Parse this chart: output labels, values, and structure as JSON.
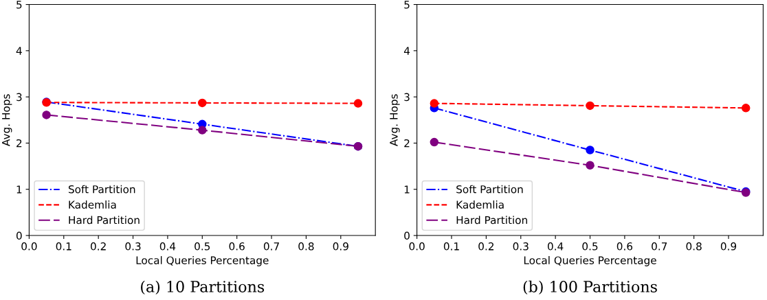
{
  "chart_data": [
    {
      "type": "line",
      "title": "(a) 10 Partitions",
      "xlabel": "Local Queries Percentage",
      "ylabel": "Avg. Hops",
      "x": [
        0.05,
        0.5,
        0.95
      ],
      "series": [
        {
          "name": "Soft Partition",
          "color": "#0000ff",
          "line_style": "dashdot",
          "values": [
            2.89,
            2.41,
            1.93
          ]
        },
        {
          "name": "Kademlia",
          "color": "#ff0000",
          "line_style": "dashed",
          "values": [
            2.88,
            2.87,
            2.86
          ]
        },
        {
          "name": "Hard Partition",
          "color": "#800080",
          "line_style": "longdash",
          "values": [
            2.61,
            2.28,
            1.93
          ]
        }
      ],
      "xlim": [
        0,
        1
      ],
      "xticks": [
        {
          "value": 0,
          "label": "0.0"
        },
        0.1,
        0.2,
        0.3,
        0.4,
        0.5,
        0.6,
        0.7,
        0.8,
        0.9
      ],
      "ylim": [
        0,
        5
      ],
      "yticks": [
        0,
        1,
        2,
        3,
        4,
        5
      ],
      "marker": "circle",
      "grid": false,
      "legend": "bottom left"
    },
    {
      "type": "line",
      "title": "(b) 100 Partitions",
      "xlabel": "Local Queries Percentage",
      "ylabel": "Avg. Hops",
      "x": [
        0.05,
        0.5,
        0.95
      ],
      "series": [
        {
          "name": "Soft Partition",
          "color": "#0000ff",
          "line_style": "dashdot",
          "values": [
            2.76,
            1.85,
            0.95
          ]
        },
        {
          "name": "Kademlia",
          "color": "#ff0000",
          "line_style": "dashed",
          "values": [
            2.86,
            2.81,
            2.76
          ]
        },
        {
          "name": "Hard Partition",
          "color": "#800080",
          "line_style": "longdash",
          "values": [
            2.02,
            1.52,
            0.93
          ]
        }
      ],
      "xlim": [
        0,
        1
      ],
      "xticks": [
        {
          "value": 0,
          "label": "0.0"
        },
        0.1,
        0.2,
        0.3,
        0.4,
        0.5,
        0.6,
        0.7,
        0.8,
        0.9
      ],
      "ylim": [
        0,
        5
      ],
      "yticks": [
        0,
        1,
        2,
        3,
        4,
        5
      ],
      "marker": "circle",
      "grid": false,
      "legend": "bottom left"
    }
  ]
}
